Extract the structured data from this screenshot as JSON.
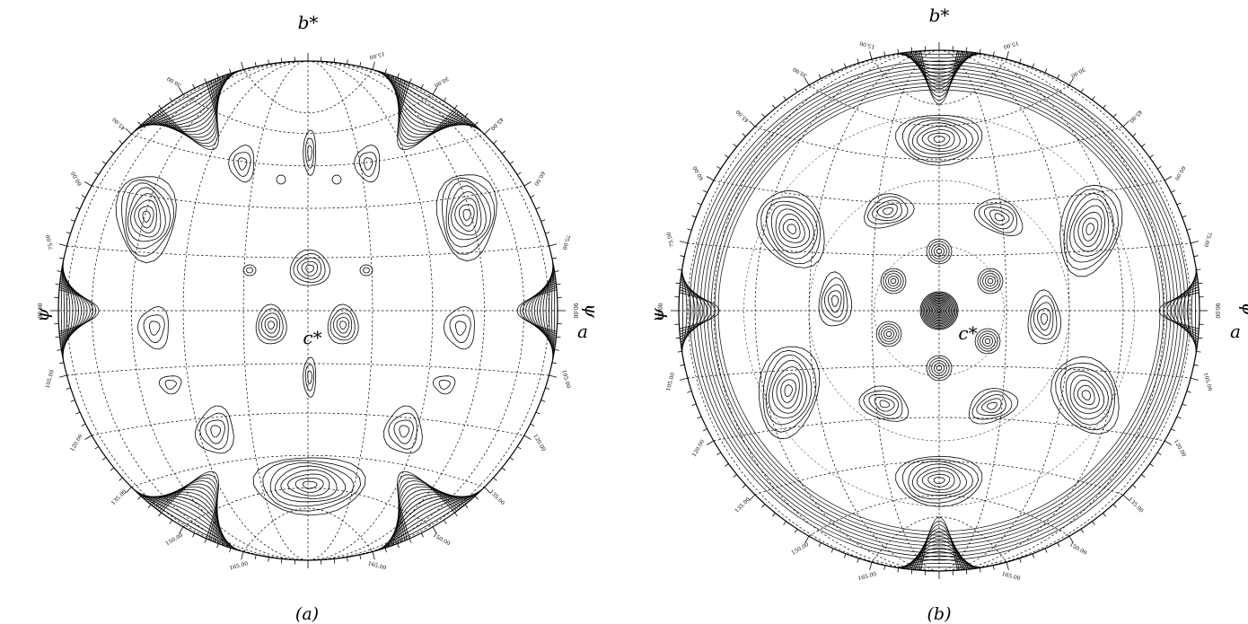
{
  "figure": {
    "panels": [
      {
        "id": "a",
        "caption": "(a)",
        "axes": {
          "top": "b*",
          "right": "a",
          "center": "c*",
          "left_side": "ψ",
          "right_side": "ψ"
        },
        "angle_labels_left": [
          "30.00",
          "45.00",
          "60.00",
          "75.00",
          "90.00",
          "105.00",
          "120.00",
          "135.00",
          "150.00",
          "165.00"
        ],
        "angle_labels_right": [
          "15.00",
          "30.00",
          "45.00",
          "60.00",
          "75.00",
          "90.00",
          "105.00",
          "120.00",
          "135.00",
          "150.00",
          "165.00"
        ]
      },
      {
        "id": "b",
        "caption": "(b)",
        "axes": {
          "top": "b*",
          "right": "a",
          "center": "c*",
          "left_side": "ψ",
          "right_side": "ψ"
        },
        "angle_labels_left": [
          "15.00",
          "30.00",
          "45.00",
          "60.00",
          "75.00",
          "90.00",
          "105.00",
          "120.00",
          "135.00",
          "150.00",
          "165.00"
        ],
        "angle_labels_right": [
          "15.00",
          "30.00",
          "45.00",
          "60.00",
          "75.00",
          "90.00",
          "105.00",
          "120.00",
          "135.00",
          "150.00",
          "165.00"
        ]
      }
    ]
  }
}
